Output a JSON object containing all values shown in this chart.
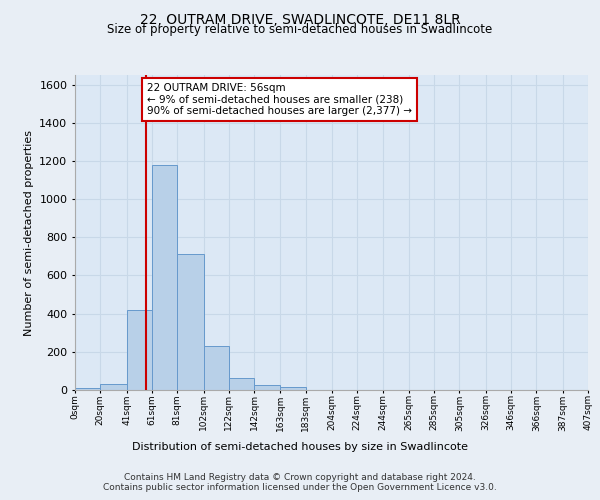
{
  "title_line1": "22, OUTRAM DRIVE, SWADLINCOTE, DE11 8LR",
  "title_line2": "Size of property relative to semi-detached houses in Swadlincote",
  "xlabel": "Distribution of semi-detached houses by size in Swadlincote",
  "ylabel": "Number of semi-detached properties",
  "footer_line1": "Contains HM Land Registry data © Crown copyright and database right 2024.",
  "footer_line2": "Contains public sector information licensed under the Open Government Licence v3.0.",
  "bar_edges": [
    0,
    20,
    41,
    61,
    81,
    102,
    122,
    142,
    163,
    183,
    204,
    224,
    244,
    265,
    285,
    305,
    326,
    346,
    366,
    387,
    407
  ],
  "bar_heights": [
    10,
    30,
    420,
    1180,
    710,
    230,
    65,
    28,
    14,
    0,
    0,
    0,
    0,
    0,
    0,
    0,
    0,
    0,
    0,
    0
  ],
  "bar_color": "#b8d0e8",
  "bar_edge_color": "#6699cc",
  "property_line_x": 56,
  "property_line_color": "#cc0000",
  "annotation_box_text": "22 OUTRAM DRIVE: 56sqm\n← 9% of semi-detached houses are smaller (238)\n90% of semi-detached houses are larger (2,377) →",
  "ylim": [
    0,
    1650
  ],
  "yticks": [
    0,
    200,
    400,
    600,
    800,
    1000,
    1200,
    1400,
    1600
  ],
  "tick_labels": [
    "0sqm",
    "20sqm",
    "41sqm",
    "61sqm",
    "81sqm",
    "102sqm",
    "122sqm",
    "142sqm",
    "163sqm",
    "183sqm",
    "204sqm",
    "224sqm",
    "244sqm",
    "265sqm",
    "285sqm",
    "305sqm",
    "326sqm",
    "346sqm",
    "366sqm",
    "387sqm",
    "407sqm"
  ],
  "grid_color": "#c8d8e8",
  "bg_color": "#e8eef5",
  "plot_bg_color": "#dce8f5"
}
